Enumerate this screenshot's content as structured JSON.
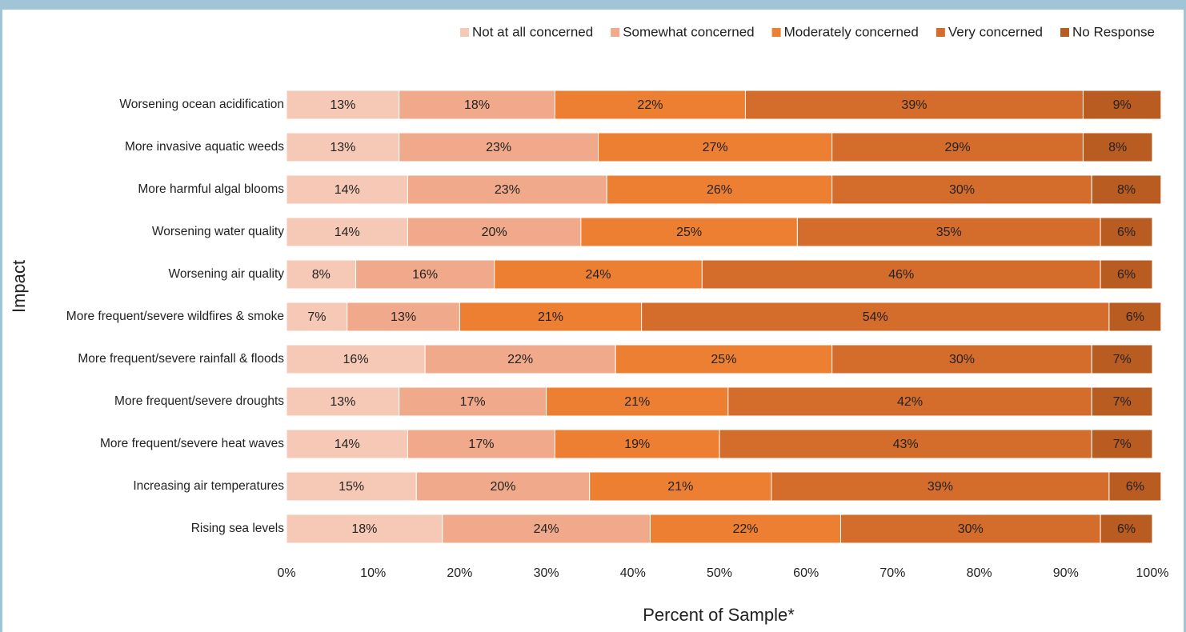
{
  "chart_data": {
    "type": "stacked_barh",
    "xlabel": "Percent of Sample*",
    "ylabel": "Impact",
    "categories": [
      "Worsening ocean acidification",
      "More invasive aquatic weeds",
      "More harmful algal blooms",
      "Worsening water quality",
      "Worsening air quality",
      "More frequent/severe wildfires & smoke",
      "More frequent/severe rainfall & floods",
      "More frequent/severe droughts",
      "More frequent/severe heat waves",
      "Increasing air temperatures",
      "Rising sea levels"
    ],
    "series": [
      {
        "name": "Not at all concerned",
        "color": "#f6c9b7",
        "values": [
          13,
          13,
          14,
          14,
          8,
          7,
          16,
          13,
          14,
          15,
          18
        ],
        "value_labels": [
          "13%",
          "13%",
          "14%",
          "14%",
          "8%",
          "7%",
          "16%",
          "13%",
          "14%",
          "15%",
          "18%"
        ]
      },
      {
        "name": "Somewhat concerned",
        "color": "#f0a98a",
        "values": [
          18,
          23,
          23,
          20,
          16,
          13,
          22,
          17,
          17,
          20,
          24
        ],
        "value_labels": [
          "18%",
          "23%",
          "23%",
          "20%",
          "16%",
          "13%",
          "22%",
          "17%",
          "17%",
          "20%",
          "24%"
        ]
      },
      {
        "name": "Moderately concerned",
        "color": "#ed7f33",
        "values": [
          22,
          27,
          26,
          25,
          24,
          21,
          25,
          21,
          19,
          21,
          22
        ],
        "value_labels": [
          "22%",
          "27%",
          "26%",
          "25%",
          "24%",
          "21%",
          "25%",
          "21%",
          "19%",
          "21%",
          "22%"
        ]
      },
      {
        "name": "Very concerned",
        "color": "#d46d2c",
        "values": [
          39,
          29,
          30,
          35,
          46,
          54,
          30,
          42,
          43,
          39,
          30
        ],
        "value_labels": [
          "39%",
          "29%",
          "30%",
          "35%",
          "46%",
          "54%",
          "30%",
          "42%",
          "43%",
          "39%",
          "30%"
        ]
      },
      {
        "name": "No Response",
        "color": "#b95c22",
        "values": [
          9,
          8,
          8,
          6,
          6,
          6,
          7,
          7,
          7,
          6,
          6
        ],
        "value_labels": [
          "9%",
          "8%",
          "8%",
          "6%",
          "6%",
          "6%",
          "7%",
          "7%",
          "7%",
          "6%",
          "6%"
        ]
      }
    ],
    "xlim": [
      0,
      100
    ],
    "xticks": [
      {
        "value": 0,
        "label": "0%"
      },
      {
        "value": 10,
        "label": "10%"
      },
      {
        "value": 20,
        "label": "20%"
      },
      {
        "value": 30,
        "label": "30%"
      },
      {
        "value": 40,
        "label": "40%"
      },
      {
        "value": 50,
        "label": "50%"
      },
      {
        "value": 60,
        "label": "60%"
      },
      {
        "value": 70,
        "label": "70%"
      },
      {
        "value": 80,
        "label": "80%"
      },
      {
        "value": 90,
        "label": "90%"
      },
      {
        "value": 100,
        "label": "100%"
      }
    ],
    "grid": false,
    "legend": "top"
  }
}
